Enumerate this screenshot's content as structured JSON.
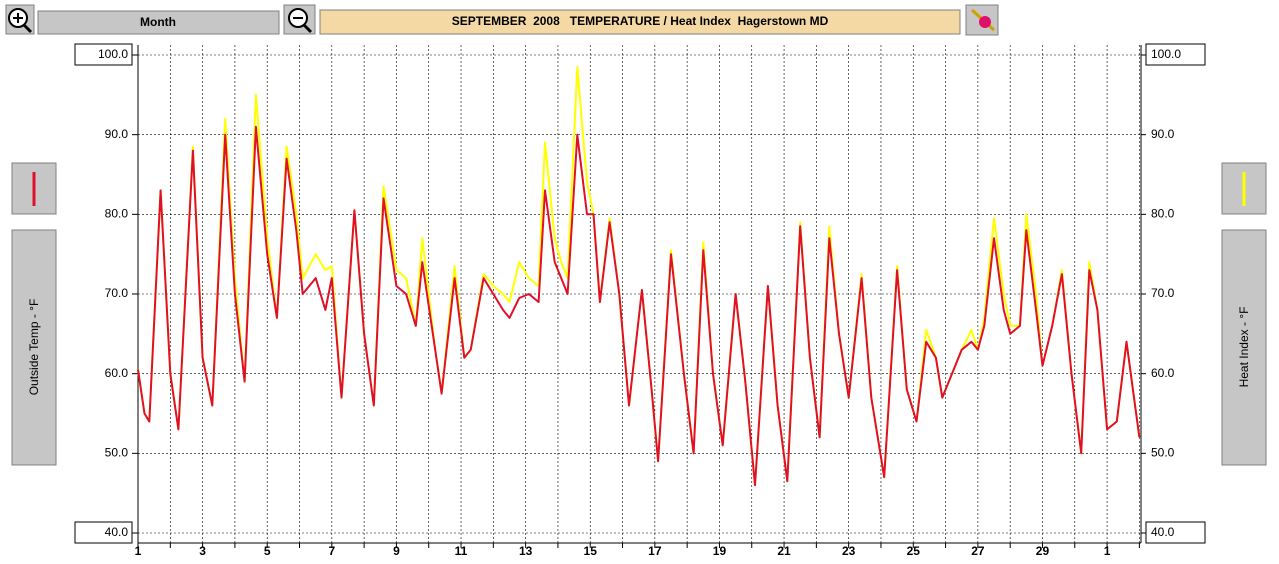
{
  "ui": {
    "range_button": "Month"
  },
  "chart_data": {
    "type": "line",
    "title": "SEPTEMBER  2008   TEMPERATURE / Heat Index  Hagerstown MD",
    "x": [
      1,
      1.2,
      1.35,
      1.7,
      2,
      2.25,
      2.7,
      3,
      3.3,
      3.7,
      4,
      4.3,
      4.65,
      5,
      5.3,
      5.6,
      5.9,
      6.1,
      6.5,
      6.8,
      7,
      7.3,
      7.7,
      8,
      8.3,
      8.6,
      9,
      9.3,
      9.6,
      9.8,
      10.2,
      10.4,
      10.8,
      11.1,
      11.3,
      11.7,
      12,
      12.3,
      12.5,
      12.8,
      13.1,
      13.4,
      13.6,
      13.9,
      14.1,
      14.3,
      14.6,
      14.9,
      15.1,
      15.3,
      15.6,
      15.9,
      16.2,
      16.6,
      16.9,
      17.1,
      17.5,
      17.9,
      18.2,
      18.5,
      18.8,
      19.1,
      19.5,
      19.8,
      20.1,
      20.5,
      20.8,
      21.1,
      21.5,
      21.8,
      22.1,
      22.4,
      22.7,
      23,
      23.4,
      23.7,
      24.1,
      24.5,
      24.8,
      25.1,
      25.4,
      25.7,
      25.9,
      26.2,
      26.5,
      26.8,
      27,
      27.2,
      27.5,
      27.8,
      28,
      28.3,
      28.5,
      28.8,
      29,
      29.3,
      29.6,
      29.9,
      30.2,
      30.45,
      30.7,
      31,
      31.3,
      31.6,
      31.8,
      32
    ],
    "series": [
      {
        "name": "Outside Temp - °F",
        "color": "#e0102a",
        "values": [
          60.5,
          55,
          54,
          83,
          60,
          53,
          88,
          62,
          56,
          90,
          70,
          59,
          91,
          75,
          67,
          87,
          78,
          70,
          72,
          68,
          72,
          57,
          80.5,
          65,
          56,
          82,
          71,
          70,
          66,
          74,
          63,
          57.5,
          72,
          62,
          63,
          72,
          70,
          68,
          67,
          69.5,
          70,
          69,
          83,
          74,
          72,
          70,
          90,
          80,
          80,
          69,
          79,
          70,
          56,
          70.5,
          58,
          49,
          75,
          60,
          50,
          75.5,
          60,
          51,
          70,
          59,
          46,
          71,
          56,
          46.5,
          78.5,
          62,
          52,
          77,
          65,
          57,
          72,
          57,
          47,
          73,
          58,
          54,
          64,
          62,
          57,
          60,
          63,
          64,
          63,
          66,
          77,
          68,
          65,
          66,
          78,
          68,
          61,
          66,
          72.5,
          60,
          50,
          73,
          68,
          53,
          54,
          64,
          58,
          52
        ]
      },
      {
        "name": "Heat Index - °F",
        "color": "#ffff00",
        "axis": "y2",
        "values": [
          60.5,
          55,
          54,
          83,
          60,
          53,
          88.5,
          62,
          56,
          92,
          72,
          59,
          95,
          77,
          67,
          88.5,
          80,
          72,
          75,
          73,
          73.5,
          57,
          80.5,
          65,
          56,
          83.5,
          73,
          72,
          66,
          77,
          63,
          57.5,
          73.5,
          62,
          63,
          72.5,
          71,
          70,
          69,
          74,
          72,
          71,
          89,
          77,
          74,
          72,
          98.5,
          84,
          80,
          69,
          79.5,
          70,
          56,
          70.5,
          58,
          49,
          75.5,
          60,
          50,
          76.5,
          60,
          51,
          70,
          59,
          46,
          71,
          56,
          46.5,
          79,
          62,
          52,
          78.5,
          65,
          57,
          72.5,
          57,
          47,
          73.5,
          58,
          54,
          65.5,
          62,
          57,
          60,
          63,
          65.5,
          63,
          67,
          79.5,
          70,
          66,
          66,
          80,
          70,
          61,
          66,
          73,
          60,
          50,
          74,
          68,
          53,
          54,
          64,
          58,
          52
        ]
      }
    ],
    "xlim": [
      1,
      32.05
    ],
    "xticks": [
      1,
      3,
      5,
      7,
      9,
      11,
      13,
      15,
      17,
      19,
      21,
      23,
      25,
      27,
      29,
      {
        "value": 31,
        "label": "1"
      }
    ],
    "xminorticks": [
      2,
      4,
      6,
      8,
      10,
      12,
      14,
      16,
      18,
      20,
      22,
      24,
      26,
      28,
      30,
      32
    ],
    "ylim": [
      40,
      100
    ],
    "yticks": [
      {
        "value": 40,
        "label": "40.0"
      },
      {
        "value": 50,
        "label": "50.0"
      },
      {
        "value": 60,
        "label": "60.0"
      },
      {
        "value": 70,
        "label": "70.0"
      },
      {
        "value": 80,
        "label": "80.0"
      },
      {
        "value": 90,
        "label": "90.0"
      },
      {
        "value": 100,
        "label": "100.0"
      }
    ],
    "y2lim": [
      40,
      100
    ],
    "y2ticks": [
      {
        "value": 40,
        "label": "40.0"
      },
      {
        "value": 50,
        "label": "50.0"
      },
      {
        "value": 60,
        "label": "60.0"
      },
      {
        "value": 70,
        "label": "70.0"
      },
      {
        "value": 80,
        "label": "80.0"
      },
      {
        "value": 90,
        "label": "90.0"
      },
      {
        "value": 100,
        "label": "100.0"
      }
    ],
    "grid": true
  }
}
